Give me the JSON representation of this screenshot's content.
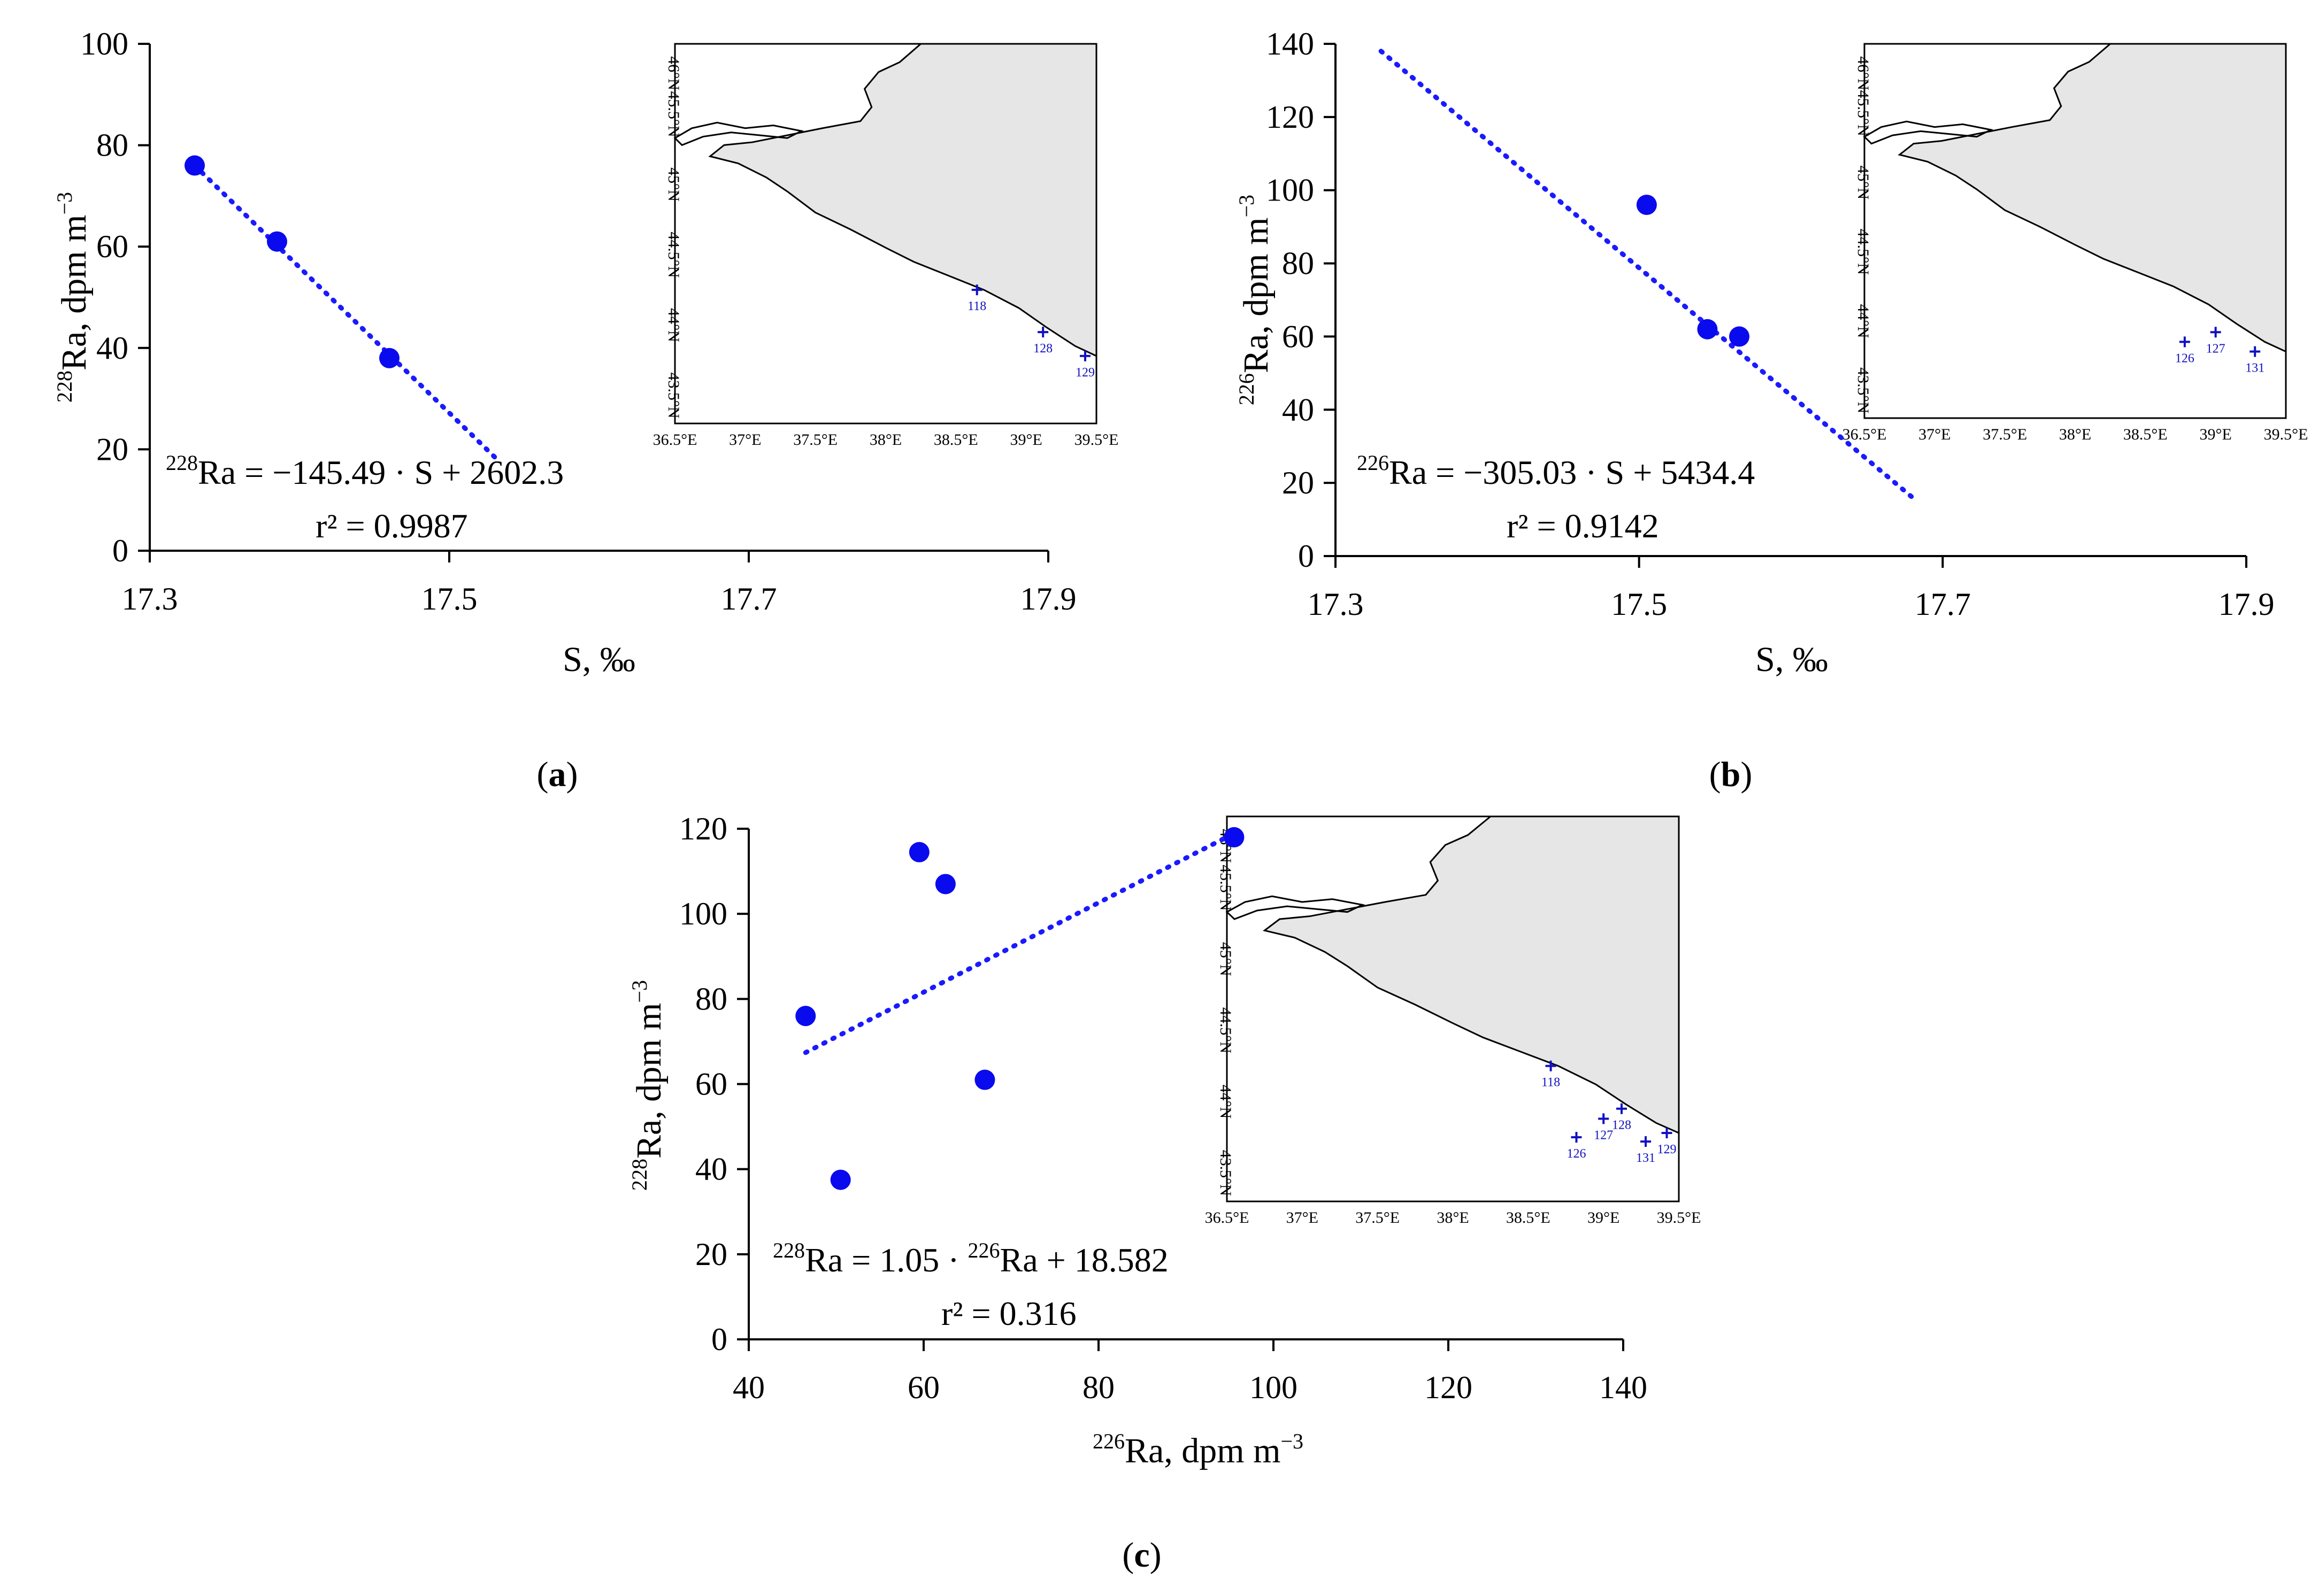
{
  "chart_data": [
    {
      "type": "scatter",
      "panel": "(a)",
      "panel_letter": "a",
      "xlabel": "S, ‰",
      "ylabel_isotope": "228",
      "ylabel_main": "Ra, dpm m",
      "ylabel_exp": "−3",
      "xlim": [
        17.3,
        17.9
      ],
      "ylim": [
        0,
        100
      ],
      "xticks": [
        17.3,
        17.5,
        17.7,
        17.9
      ],
      "xtick_labels": [
        "17.3",
        "17.5",
        "17.7",
        "17.9"
      ],
      "yticks": [
        0,
        20,
        40,
        60,
        80,
        100
      ],
      "ytick_labels": [
        "0",
        "20",
        "40",
        "60",
        "80",
        "100"
      ],
      "points": [
        {
          "x": 17.33,
          "y": 76
        },
        {
          "x": 17.385,
          "y": 61
        },
        {
          "x": 17.46,
          "y": 38
        }
      ],
      "trendline": {
        "x": [
          17.33,
          17.532
        ],
        "y": [
          76,
          18
        ]
      },
      "equation": {
        "isotope": "228",
        "main": "Ra = −145.49 · S + 2602.3",
        "r2": "r² = 0.9987"
      },
      "inset_map": {
        "lon_labels": [
          "36.5°E",
          "37°E",
          "37.5°E",
          "38°E",
          "38.5°E",
          "39°E",
          "39.5°E"
        ],
        "lat_labels": [
          "43.5°N",
          "44°N",
          "44.5°N",
          "45°N",
          "45.5°N",
          "46°N"
        ],
        "stations": [
          {
            "id": "118",
            "lon": 38.65,
            "lat": 44.25
          },
          {
            "id": "128",
            "lon": 39.12,
            "lat": 43.95
          },
          {
            "id": "129",
            "lon": 39.42,
            "lat": 43.78
          }
        ]
      }
    },
    {
      "type": "scatter",
      "panel": "(b)",
      "panel_letter": "b",
      "xlabel": "S, ‰",
      "ylabel_isotope": "226",
      "ylabel_main": "Ra, dpm m",
      "ylabel_exp": "−3",
      "xlim": [
        17.3,
        17.9
      ],
      "ylim": [
        0,
        140
      ],
      "xticks": [
        17.3,
        17.5,
        17.7,
        17.9
      ],
      "xtick_labels": [
        "17.3",
        "17.5",
        "17.7",
        "17.9"
      ],
      "yticks": [
        0,
        20,
        40,
        60,
        80,
        100,
        120,
        140
      ],
      "ytick_labels": [
        "0",
        "20",
        "40",
        "60",
        "80",
        "100",
        "120",
        "140"
      ],
      "points": [
        {
          "x": 17.505,
          "y": 96
        },
        {
          "x": 17.545,
          "y": 62
        },
        {
          "x": 17.566,
          "y": 60
        }
      ],
      "trendline": {
        "x": [
          17.33,
          17.683
        ],
        "y": [
          138,
          15
        ]
      },
      "equation": {
        "isotope": "226",
        "main": "Ra = −305.03 · S + 5434.4",
        "r2": "r² = 0.9142"
      },
      "inset_map": {
        "lon_labels": [
          "36.5°E",
          "37°E",
          "37.5°E",
          "38°E",
          "38.5°E",
          "39°E",
          "39.5°E"
        ],
        "lat_labels": [
          "43.5°N",
          "44°N",
          "44.5°N",
          "45°N",
          "45.5°N",
          "46°N"
        ],
        "stations": [
          {
            "id": "126",
            "lon": 38.78,
            "lat": 43.85
          },
          {
            "id": "127",
            "lon": 39.0,
            "lat": 43.92
          },
          {
            "id": "131",
            "lon": 39.28,
            "lat": 43.78
          }
        ]
      }
    },
    {
      "type": "scatter",
      "panel": "(c)",
      "panel_letter": "c",
      "xlabel_isotope": "226",
      "xlabel_main": "Ra, dpm m",
      "xlabel_exp": "−3",
      "ylabel_isotope": "228",
      "ylabel_main": "Ra, dpm m",
      "ylabel_exp": "−3",
      "xlim": [
        40,
        140
      ],
      "ylim": [
        0,
        120
      ],
      "xticks": [
        40,
        60,
        80,
        100,
        120,
        140
      ],
      "xtick_labels": [
        "40",
        "60",
        "80",
        "100",
        "120",
        "140"
      ],
      "yticks": [
        0,
        20,
        40,
        60,
        80,
        100,
        120
      ],
      "ytick_labels": [
        "0",
        "20",
        "40",
        "60",
        "80",
        "100",
        "120"
      ],
      "points": [
        {
          "x": 46.5,
          "y": 76
        },
        {
          "x": 50.5,
          "y": 37.5
        },
        {
          "x": 59.5,
          "y": 114.5
        },
        {
          "x": 62.5,
          "y": 107
        },
        {
          "x": 67,
          "y": 61
        },
        {
          "x": 95.5,
          "y": 118
        }
      ],
      "trendline": {
        "x": [
          46.5,
          95.5
        ],
        "y": [
          67.4,
          118.9
        ]
      },
      "equation": {
        "isotope1": "228",
        "part1": "Ra = 1.05 · ",
        "isotope2": "226",
        "part2": "Ra + 18.582",
        "r2": "r² = 0.316"
      },
      "inset_map": {
        "lon_labels": [
          "36.5°E",
          "37°E",
          "37.5°E",
          "38°E",
          "38.5°E",
          "39°E",
          "39.5°E"
        ],
        "lat_labels": [
          "43.5°N",
          "44°N",
          "44.5°N",
          "45°N",
          "45.5°N",
          "46°N"
        ],
        "stations": [
          {
            "id": "118",
            "lon": 38.65,
            "lat": 44.25
          },
          {
            "id": "128",
            "lon": 39.12,
            "lat": 43.95
          },
          {
            "id": "127",
            "lon": 39.0,
            "lat": 43.88
          },
          {
            "id": "126",
            "lon": 38.82,
            "lat": 43.75
          },
          {
            "id": "131",
            "lon": 39.28,
            "lat": 43.72
          },
          {
            "id": "129",
            "lon": 39.42,
            "lat": 43.78
          }
        ]
      }
    }
  ]
}
